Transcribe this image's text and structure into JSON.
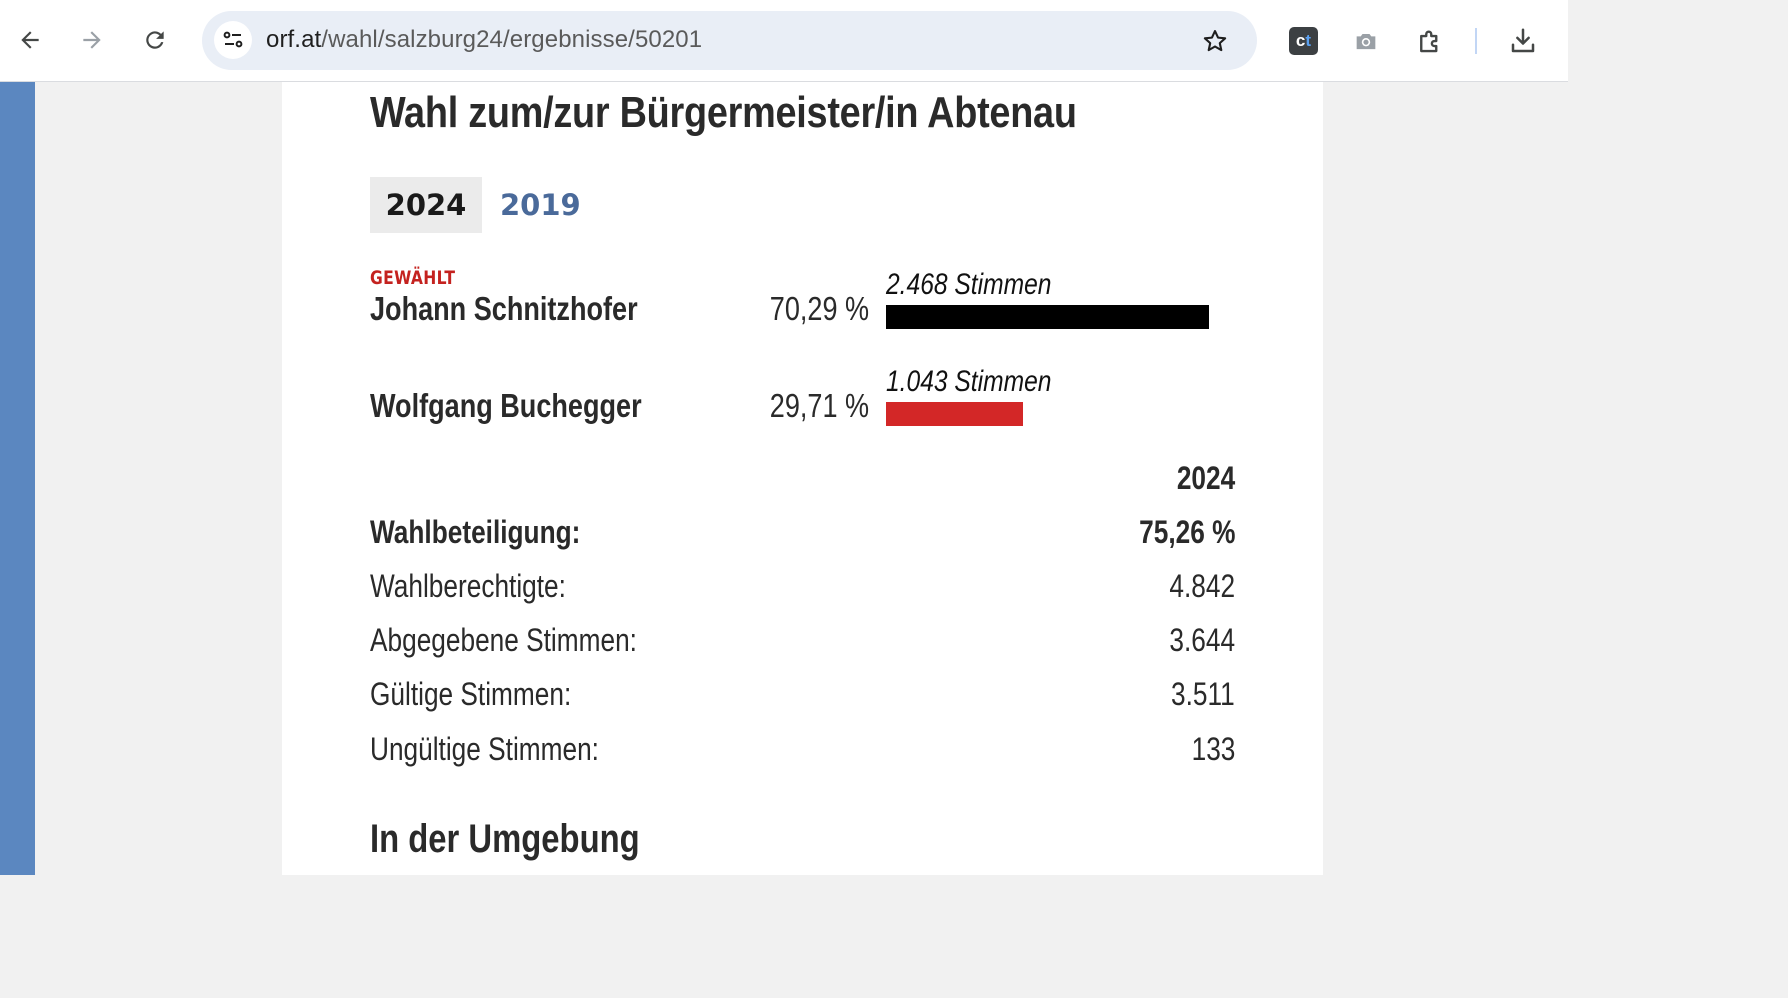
{
  "browser": {
    "url_host": "orf.at",
    "url_path": "/wahl/salzburg24/ergebnisse/50201",
    "extension_label_c": "c",
    "extension_label_t": "t",
    "icons": [
      "back-arrow-icon",
      "forward-arrow-icon",
      "reload-icon",
      "site-info-icon",
      "star-icon",
      "camera-icon",
      "puzzle-icon",
      "download-icon"
    ]
  },
  "page": {
    "title": "Wahl zum/zur Bürgermeister/in Abtenau",
    "years": [
      {
        "label": "2024",
        "active": true
      },
      {
        "label": "2019",
        "active": false
      }
    ],
    "elected_label": "GEWÄHLT",
    "candidates": [
      {
        "name": "Johann Schnitzhofer",
        "percent": "70,29 %",
        "votes": "2.468 Stimmen",
        "share": 0.7029,
        "color": "#000000"
      },
      {
        "name": "Wolfgang Buchegger",
        "percent": "29,71 %",
        "votes": "1.043 Stimmen",
        "share": 0.2971,
        "color": "#d32727"
      }
    ],
    "stats": {
      "year_header": "2024",
      "rows": [
        {
          "label": "Wahlbeteiligung:",
          "value": "75,26 %",
          "bold": true
        },
        {
          "label": "Wahlberechtigte:",
          "value": "4.842",
          "bold": false
        },
        {
          "label": "Abgegebene Stimmen:",
          "value": "3.644",
          "bold": false
        },
        {
          "label": "Gültige Stimmen:",
          "value": "3.511",
          "bold": false
        },
        {
          "label": "Ungültige Stimmen:",
          "value": "133",
          "bold": false
        }
      ]
    },
    "section_title": "In der Umgebung"
  },
  "colors": {
    "accent_red": "#c4221f",
    "link_blue": "#4a6a9a",
    "sidebar_blue": "#5b87c0"
  }
}
